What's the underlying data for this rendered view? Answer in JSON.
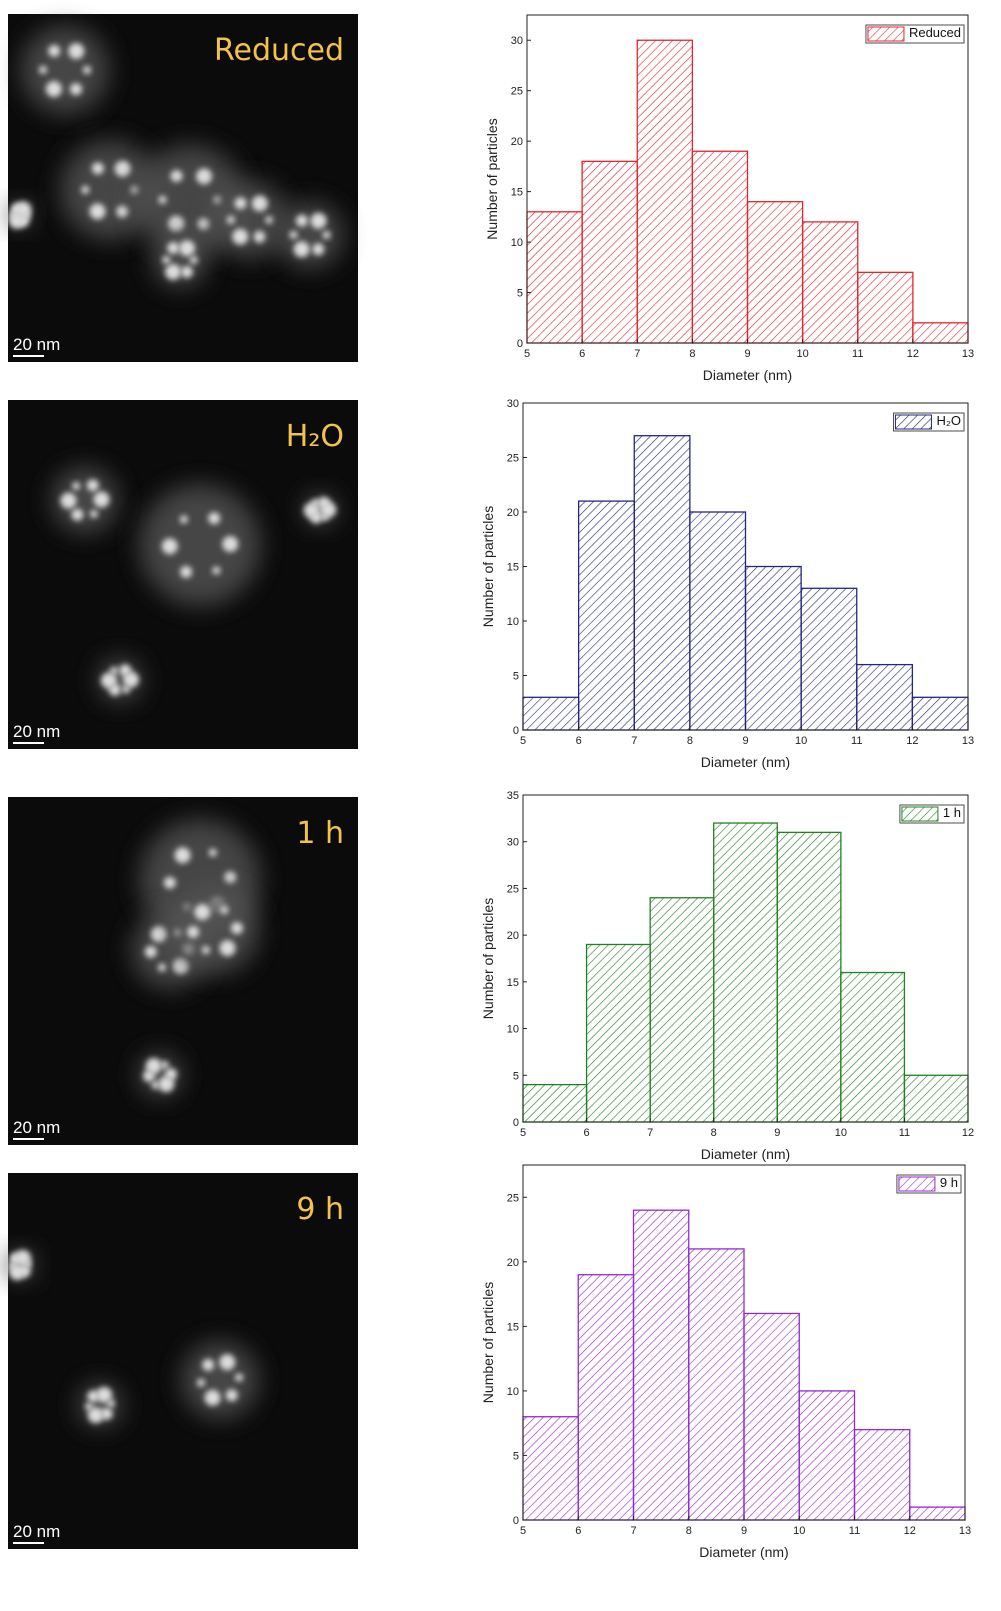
{
  "micrographs": [
    {
      "label": "Reduced",
      "scale_bar": "20 nm"
    },
    {
      "label": "H₂O",
      "scale_bar": "20 nm"
    },
    {
      "label": "1 h",
      "scale_bar": "20 nm"
    },
    {
      "label": "9 h",
      "scale_bar": "20 nm"
    }
  ],
  "chart_data": [
    {
      "type": "histogram",
      "xlabel": "Diameter (nm)",
      "ylabel": "Number of particles",
      "bins": [
        5,
        6,
        7,
        8,
        9,
        10,
        11,
        12,
        13
      ],
      "series": [
        {
          "name": "Reduced",
          "color": "#e0262e",
          "values": [
            13,
            18,
            30,
            19,
            14,
            12,
            7,
            2
          ]
        }
      ],
      "xlim": [
        5,
        13
      ],
      "xticks": [
        5,
        6,
        7,
        8,
        9,
        10,
        11,
        12,
        13
      ],
      "ylim": [
        0,
        32.5
      ],
      "yticks": [
        0,
        5,
        10,
        15,
        20,
        25,
        30
      ],
      "legend": "top-right"
    },
    {
      "type": "histogram",
      "xlabel": "Diameter (nm)",
      "ylabel": "Number of particles",
      "bins": [
        5,
        6,
        7,
        8,
        9,
        10,
        11,
        12,
        13
      ],
      "series": [
        {
          "name": "H₂O",
          "color": "#26267e",
          "values": [
            3,
            21,
            27,
            20,
            15,
            13,
            6,
            3
          ]
        }
      ],
      "xlim": [
        5,
        13
      ],
      "xticks": [
        5,
        6,
        7,
        8,
        9,
        10,
        11,
        12,
        13
      ],
      "ylim": [
        0,
        30
      ],
      "yticks": [
        0,
        5,
        10,
        15,
        20,
        25,
        30
      ],
      "legend": "top-right"
    },
    {
      "type": "histogram",
      "xlabel": "Diameter (nm)",
      "ylabel": "Number of particles",
      "bins": [
        5,
        6,
        7,
        8,
        9,
        10,
        11,
        12
      ],
      "series": [
        {
          "name": "1 h",
          "color": "#228022",
          "values": [
            4,
            19,
            24,
            32,
            31,
            16,
            5
          ]
        }
      ],
      "xlim": [
        5,
        12
      ],
      "xticks": [
        5,
        6,
        7,
        8,
        9,
        10,
        11,
        12
      ],
      "ylim": [
        0,
        35
      ],
      "yticks": [
        0,
        5,
        10,
        15,
        20,
        25,
        30,
        35
      ],
      "legend": "top-right"
    },
    {
      "type": "histogram",
      "xlabel": "Diameter (nm)",
      "ylabel": "Number of particles",
      "bins": [
        5,
        6,
        7,
        8,
        9,
        10,
        11,
        12,
        13
      ],
      "series": [
        {
          "name": "9 h",
          "color": "#9428d2",
          "values": [
            8,
            19,
            24,
            21,
            16,
            10,
            7,
            1
          ]
        }
      ],
      "xlim": [
        5,
        13
      ],
      "xticks": [
        5,
        6,
        7,
        8,
        9,
        10,
        11,
        12,
        13
      ],
      "ylim": [
        0,
        27.5
      ],
      "yticks": [
        0,
        5,
        10,
        15,
        20,
        25
      ],
      "legend": "top-right"
    }
  ]
}
